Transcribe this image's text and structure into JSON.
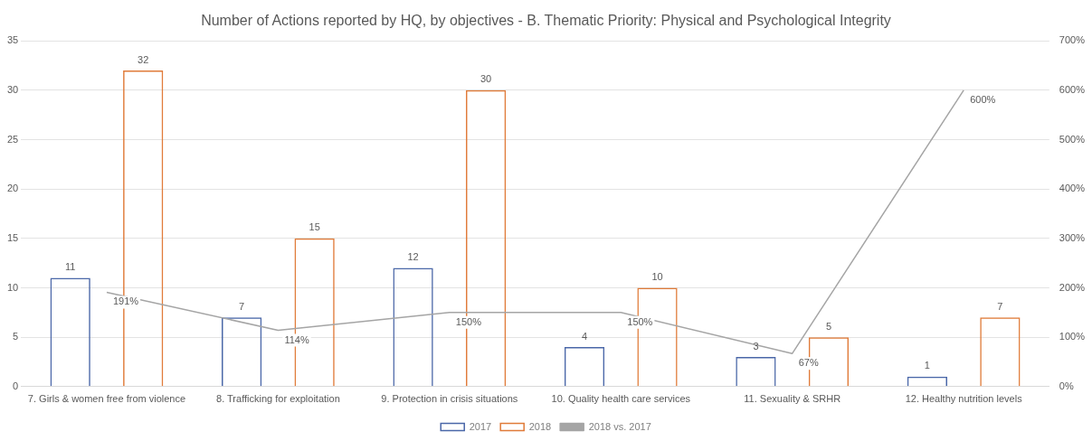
{
  "chart_data": {
    "type": "bar",
    "title": "Number of Actions reported by HQ, by objectives - B. Thematic Priority: Physical and Psychological Integrity",
    "categories": [
      "7. Girls & women free from violence",
      "8. Trafficking for exploitation",
      "9. Protection in crisis situations",
      "10. Quality health care services",
      "11. Sexuality & SRHR",
      "12. Healthy nutrition levels"
    ],
    "series": [
      {
        "name": "2017",
        "color": "#4a67a8",
        "values": [
          11,
          7,
          12,
          4,
          3,
          1
        ]
      },
      {
        "name": "2018",
        "color": "#e07b39",
        "values": [
          32,
          15,
          30,
          10,
          5,
          7
        ]
      },
      {
        "name": "2018 vs. 2017",
        "type": "line",
        "axis": "y2",
        "color": "#a5a5a5",
        "values": [
          191,
          114,
          150,
          150,
          67,
          600
        ],
        "value_labels": [
          "191%",
          "114%",
          "150%",
          "150%",
          "67%",
          "600%"
        ]
      }
    ],
    "data_labels": true,
    "ylim": [
      0,
      35
    ],
    "yticks": [
      0,
      5,
      10,
      15,
      20,
      25,
      30,
      35
    ],
    "y2lim": [
      0,
      700
    ],
    "y2ticks": [
      {
        "value": 0,
        "label": "0%"
      },
      {
        "value": 100,
        "label": "100%"
      },
      {
        "value": 200,
        "label": "200%"
      },
      {
        "value": 300,
        "label": "300%"
      },
      {
        "value": 400,
        "label": "400%"
      },
      {
        "value": 500,
        "label": "500%"
      },
      {
        "value": 600,
        "label": "600%"
      },
      {
        "value": 700,
        "label": "700%"
      }
    ],
    "grid": "y",
    "legend": "bottom",
    "marker": "none"
  }
}
